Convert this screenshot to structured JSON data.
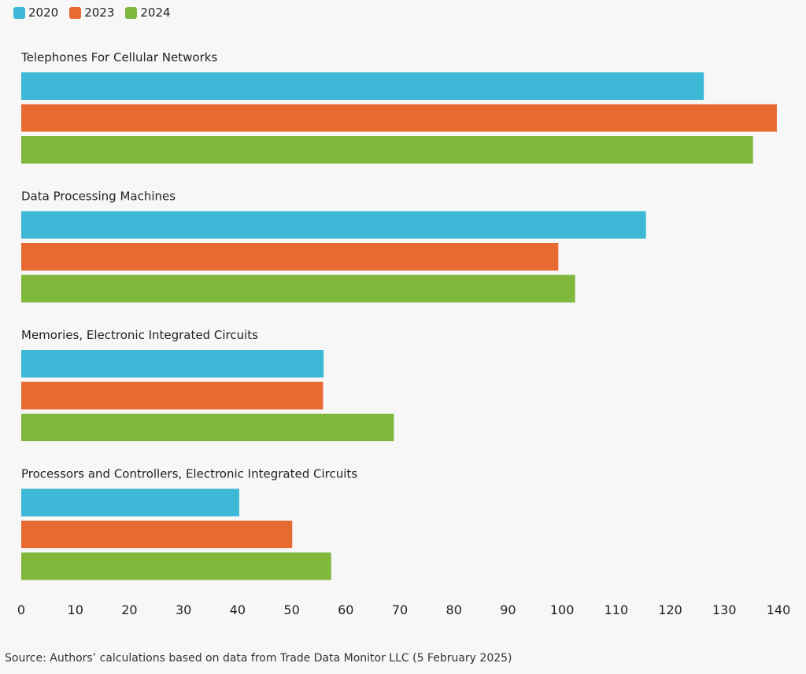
{
  "chart_data": {
    "type": "bar",
    "orientation": "horizontal",
    "categories": [
      "Telephones For Cellular Networks",
      "Data Processing Machines",
      "Memories, Electronic Integrated Circuits",
      "Processors and Controllers, Electronic Integrated Circuits"
    ],
    "series": [
      {
        "name": "2020",
        "color": "#3db8d6",
        "values": [
          126.2,
          115.5,
          55.9,
          40.3
        ]
      },
      {
        "name": "2023",
        "color": "#e86a33",
        "values": [
          139.7,
          99.3,
          55.8,
          50.1
        ]
      },
      {
        "name": "2024",
        "color": "#7fb83d",
        "values": [
          135.3,
          102.4,
          68.9,
          57.3
        ]
      }
    ],
    "title": "",
    "xlabel": "",
    "ylabel": "",
    "xlim": [
      0,
      140
    ],
    "xticks": [
      "0",
      "10",
      "20",
      "30",
      "40",
      "50",
      "60",
      "70",
      "80",
      "90",
      "100",
      "110",
      "120",
      "130",
      "140"
    ],
    "grid": false,
    "legend": "top-left"
  },
  "source": "Source: Authors’ calculations based on data from Trade Data Monitor LLC (5 February 2025)"
}
